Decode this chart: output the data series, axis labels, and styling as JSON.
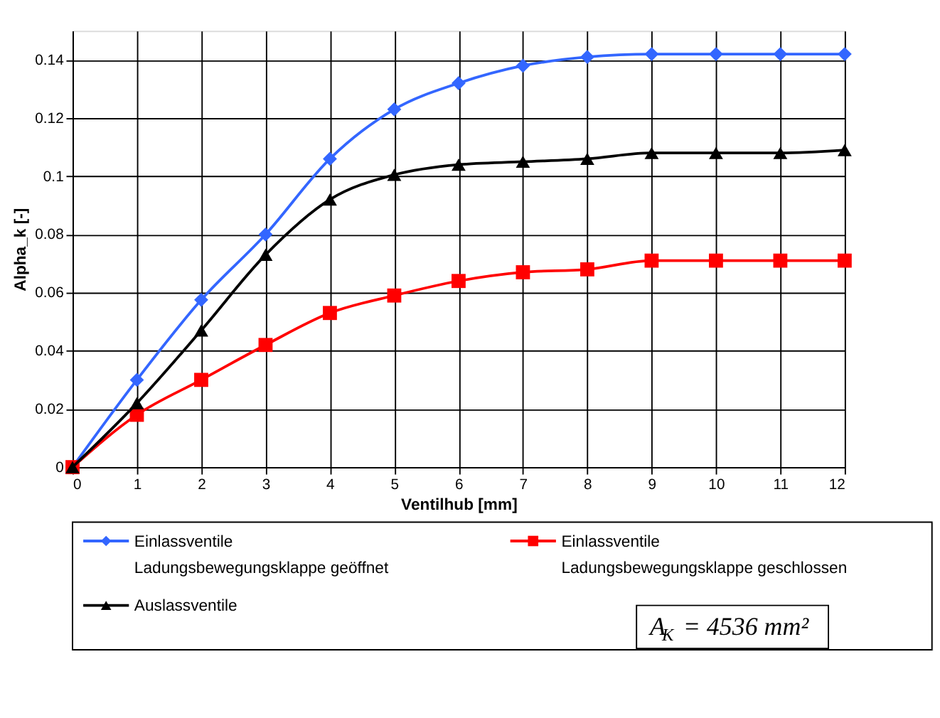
{
  "chart_data": {
    "type": "line",
    "xlabel": "Ventilhub [mm]",
    "ylabel": "Alpha_k [-]",
    "x": [
      0,
      1,
      2,
      3,
      4,
      5,
      6,
      7,
      8,
      9,
      10,
      11,
      12
    ],
    "series": [
      {
        "name": "Einlassventile\nLadungsbewegungsklappe geöffnet",
        "color": "#3366ff",
        "marker": "diamond",
        "values": [
          0,
          0.03,
          0.0575,
          0.08,
          0.106,
          0.123,
          0.132,
          0.138,
          0.141,
          0.142,
          0.142,
          0.142,
          0.142
        ]
      },
      {
        "name": "Einlassventile\nLadungsbewegungsklappe geschlossen",
        "color": "#ff0000",
        "marker": "square",
        "values": [
          0,
          0.018,
          0.03,
          0.042,
          0.053,
          0.059,
          0.064,
          0.067,
          0.068,
          0.071,
          0.071,
          0.071,
          0.071
        ]
      },
      {
        "name": "Auslassventile",
        "color": "#000000",
        "marker": "triangle",
        "values": [
          0,
          0.022,
          0.047,
          0.073,
          0.092,
          0.1005,
          0.104,
          0.105,
          0.106,
          0.108,
          0.108,
          0.108,
          0.109
        ]
      }
    ],
    "xlim": [
      0,
      12
    ],
    "xticks": [
      0,
      1,
      2,
      3,
      4,
      5,
      6,
      7,
      8,
      9,
      10,
      11,
      12
    ],
    "ylim": [
      0,
      0.15
    ],
    "yticks": [
      0,
      0.02,
      0.04,
      0.06,
      0.08,
      0.1,
      0.12,
      0.14
    ],
    "grid": true,
    "legend": "bottom",
    "line_style": "solid",
    "annotations": [
      "A$_{K}$ = 4536 mm²"
    ]
  }
}
